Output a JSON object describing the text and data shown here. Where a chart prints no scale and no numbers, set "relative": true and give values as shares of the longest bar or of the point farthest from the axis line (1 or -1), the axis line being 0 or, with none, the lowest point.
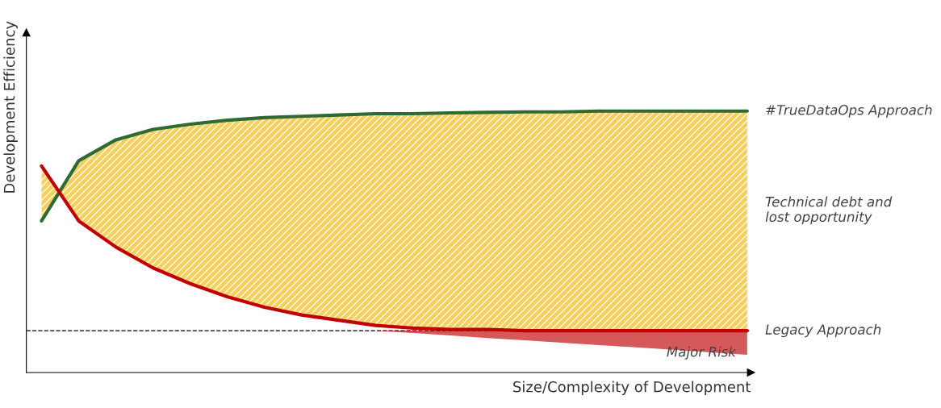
{
  "chart_data": {
    "type": "line",
    "relative": true,
    "xlabel": "Size/Complexity of Development",
    "ylabel": "Development Efficiency",
    "categories": [
      null,
      null,
      null,
      null,
      null,
      null,
      null,
      null,
      null,
      null,
      null,
      null,
      null,
      null,
      null,
      null,
      null,
      null,
      null,
      null
    ],
    "series": [
      {
        "name": "#TrueDataOps Approach",
        "color": "#2e6b34",
        "values": [
          0.58,
          0.81,
          0.89,
          0.93,
          0.95,
          0.965,
          0.975,
          0.98,
          0.985,
          0.99,
          0.99,
          0.993,
          0.995,
          0.997,
          0.997,
          1,
          1,
          1,
          1,
          1
        ]
      },
      {
        "name": "Legacy Approach",
        "color": "#c00000",
        "values": [
          0.79,
          0.58,
          0.48,
          0.4,
          0.34,
          0.29,
          0.25,
          0.22,
          0.2,
          0.18,
          0.17,
          0.165,
          0.165,
          0.16,
          0.16,
          0.16,
          0.16,
          0.16,
          0.16,
          0.16
        ],
        "lower": [
          null,
          null,
          null,
          null,
          null,
          null,
          null,
          null,
          null,
          0.16,
          0.151,
          0.142,
          0.132,
          0.123,
          0.114,
          0.105,
          0.096,
          0.087,
          0.077,
          0.068
        ],
        "upper": [
          null,
          null,
          null,
          null,
          null,
          null,
          null,
          null,
          null,
          0.16,
          0.16,
          0.16,
          0.16,
          0.16,
          0.16,
          0.16,
          0.16,
          0.16,
          0.16,
          0.16
        ]
      }
    ],
    "ref_lines": [
      {
        "axis": "y",
        "value": 0.16,
        "color": "#000000",
        "line_style": "dashed"
      }
    ],
    "annotations": [
      "Technical debt and\nlost opportunity",
      "Major Risk"
    ]
  }
}
